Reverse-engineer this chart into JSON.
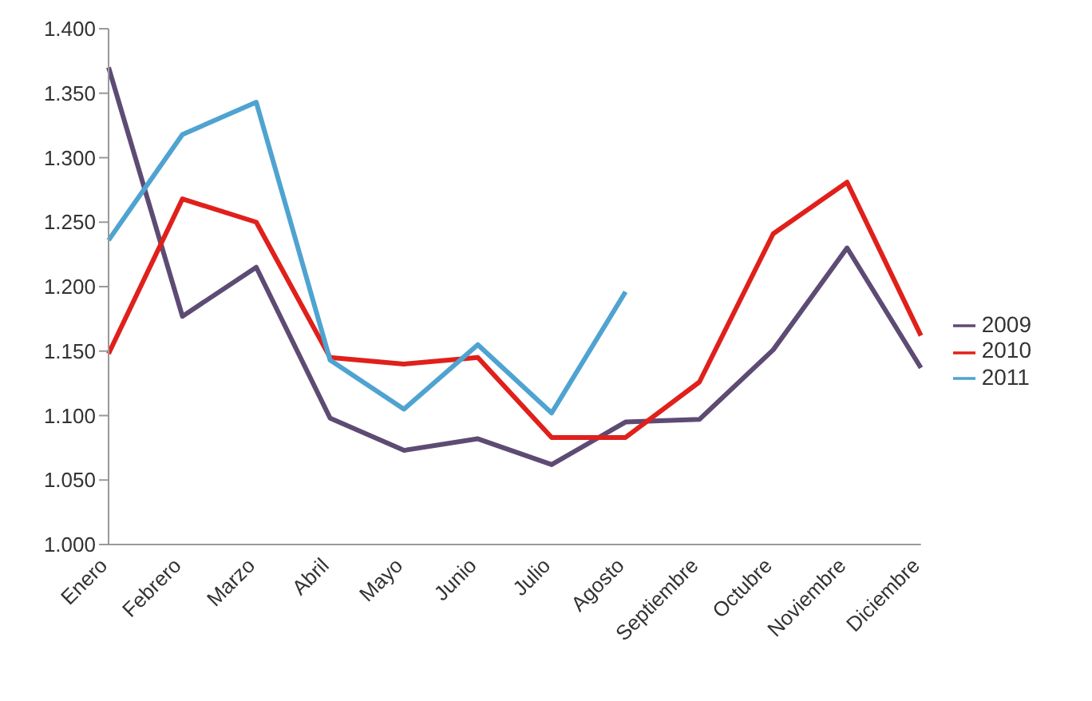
{
  "chart_data": {
    "type": "line",
    "categories": [
      "Enero",
      "Febrero",
      "Marzo",
      "Abril",
      "Mayo",
      "Junio",
      "Julio",
      "Agosto",
      "Septiembre",
      "Octubre",
      "Noviembre",
      "Diciembre"
    ],
    "series": [
      {
        "name": "2009",
        "color": "#5e4b74",
        "values": [
          1.37,
          1.177,
          1.215,
          1.098,
          1.073,
          1.082,
          1.062,
          1.095,
          1.097,
          1.151,
          1.23,
          1.137
        ]
      },
      {
        "name": "2010",
        "color": "#e0201b",
        "values": [
          1.148,
          1.268,
          1.25,
          1.145,
          1.14,
          1.145,
          1.083,
          1.083,
          1.126,
          1.241,
          1.281,
          1.162
        ]
      },
      {
        "name": "2011",
        "color": "#4fa3d1",
        "values": [
          1.236,
          1.318,
          1.343,
          1.143,
          1.105,
          1.155,
          1.102,
          1.196,
          null,
          null,
          null,
          null
        ]
      }
    ],
    "ylim": [
      1.0,
      1.4
    ],
    "yticks": [
      {
        "value": 1.0,
        "label": "1.000"
      },
      {
        "value": 1.05,
        "label": "1.050"
      },
      {
        "value": 1.1,
        "label": "1.100"
      },
      {
        "value": 1.15,
        "label": "1.150"
      },
      {
        "value": 1.2,
        "label": "1.200"
      },
      {
        "value": 1.25,
        "label": "1.250"
      },
      {
        "value": 1.3,
        "label": "1.300"
      },
      {
        "value": 1.35,
        "label": "1.350"
      },
      {
        "value": 1.4,
        "label": "1.400"
      }
    ],
    "grid": false,
    "legend": "right",
    "marker": "none",
    "line_style": "solid"
  }
}
